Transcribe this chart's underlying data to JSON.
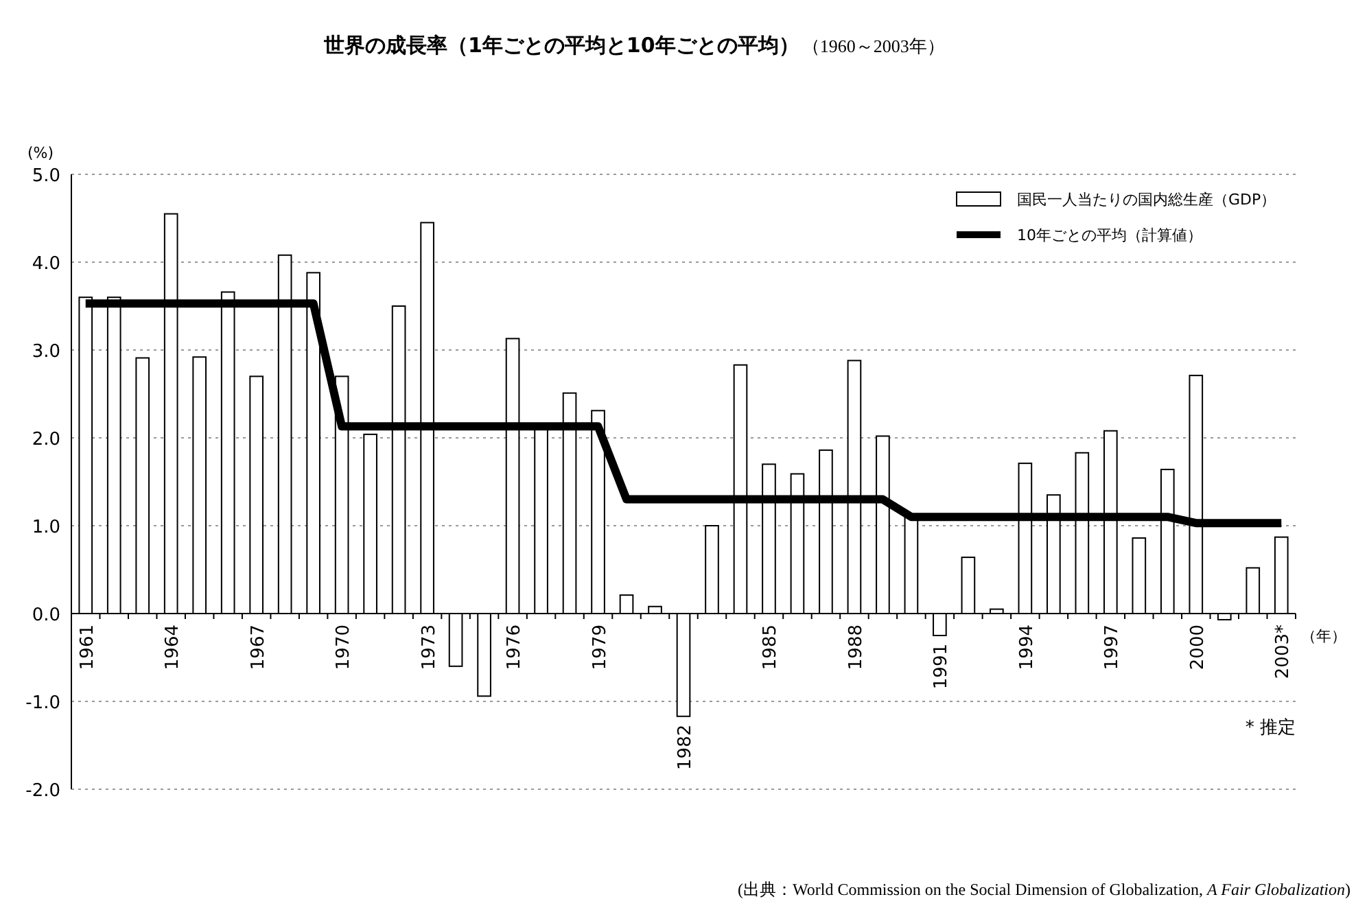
{
  "chart_data": {
    "type": "bar",
    "title": "世界の成長率（1年ごとの平均と10年ごとの平均）",
    "subtitle": "（1960～2003年）",
    "xlabel": "（年）",
    "ylabel": "(%)",
    "categories": [
      "1961",
      null,
      null,
      "1964",
      null,
      null,
      "1967",
      null,
      null,
      "1970",
      null,
      null,
      "1973",
      null,
      null,
      "1976",
      null,
      null,
      "1979",
      null,
      null,
      "1982",
      null,
      null,
      "1985",
      null,
      null,
      "1988",
      null,
      null,
      "1991",
      null,
      null,
      "1994",
      null,
      null,
      "1997",
      null,
      null,
      "2000",
      null,
      null,
      "2003*"
    ],
    "series": [
      {
        "name": "国民一人当たりの国内総生産（GDP）",
        "color": "#ffffff",
        "values": [
          3.6,
          3.6,
          2.91,
          4.55,
          2.92,
          3.66,
          2.7,
          4.08,
          3.88,
          2.7,
          2.04,
          3.5,
          4.45,
          -0.6,
          -0.94,
          3.13,
          2.1,
          2.51,
          2.31,
          0.21,
          0.08,
          -1.17,
          1.0,
          2.83,
          1.7,
          1.59,
          1.86,
          2.88,
          2.02,
          1.1,
          -0.25,
          0.64,
          0.05,
          1.71,
          1.35,
          1.83,
          2.08,
          0.86,
          1.64,
          2.71,
          -0.07,
          0.52,
          0.87
        ]
      },
      {
        "name": "10年ごとの平均（計算値）",
        "type": "line",
        "color": "#000000",
        "values": [
          3.53,
          3.53,
          3.53,
          3.53,
          3.53,
          3.53,
          3.53,
          3.53,
          3.53,
          2.13,
          2.13,
          2.13,
          2.13,
          2.13,
          2.13,
          2.13,
          2.13,
          2.13,
          2.13,
          1.3,
          1.3,
          1.3,
          1.3,
          1.3,
          1.3,
          1.3,
          1.3,
          1.3,
          1.3,
          1.1,
          1.1,
          1.1,
          1.1,
          1.1,
          1.1,
          1.1,
          1.1,
          1.1,
          1.1,
          1.03,
          1.03,
          1.03,
          1.03
        ]
      }
    ],
    "ylim": [
      -2,
      5
    ],
    "yticks": [
      {
        "value": -2,
        "label": "-2.0"
      },
      {
        "value": -1,
        "label": "-1.0"
      },
      {
        "value": 0,
        "label": "0.0"
      },
      {
        "value": 1,
        "label": "1.0"
      },
      {
        "value": 2,
        "label": "2.0"
      },
      {
        "value": 3,
        "label": "3.0"
      },
      {
        "value": 4,
        "label": "4.0"
      },
      {
        "value": 5,
        "label": "5.0"
      }
    ],
    "grid": "y",
    "legend": "top right",
    "annotations": [
      "* 推定",
      "(出典：World Commission on the Social Dimension of Globalization, *A Fair Globalization*)"
    ]
  }
}
